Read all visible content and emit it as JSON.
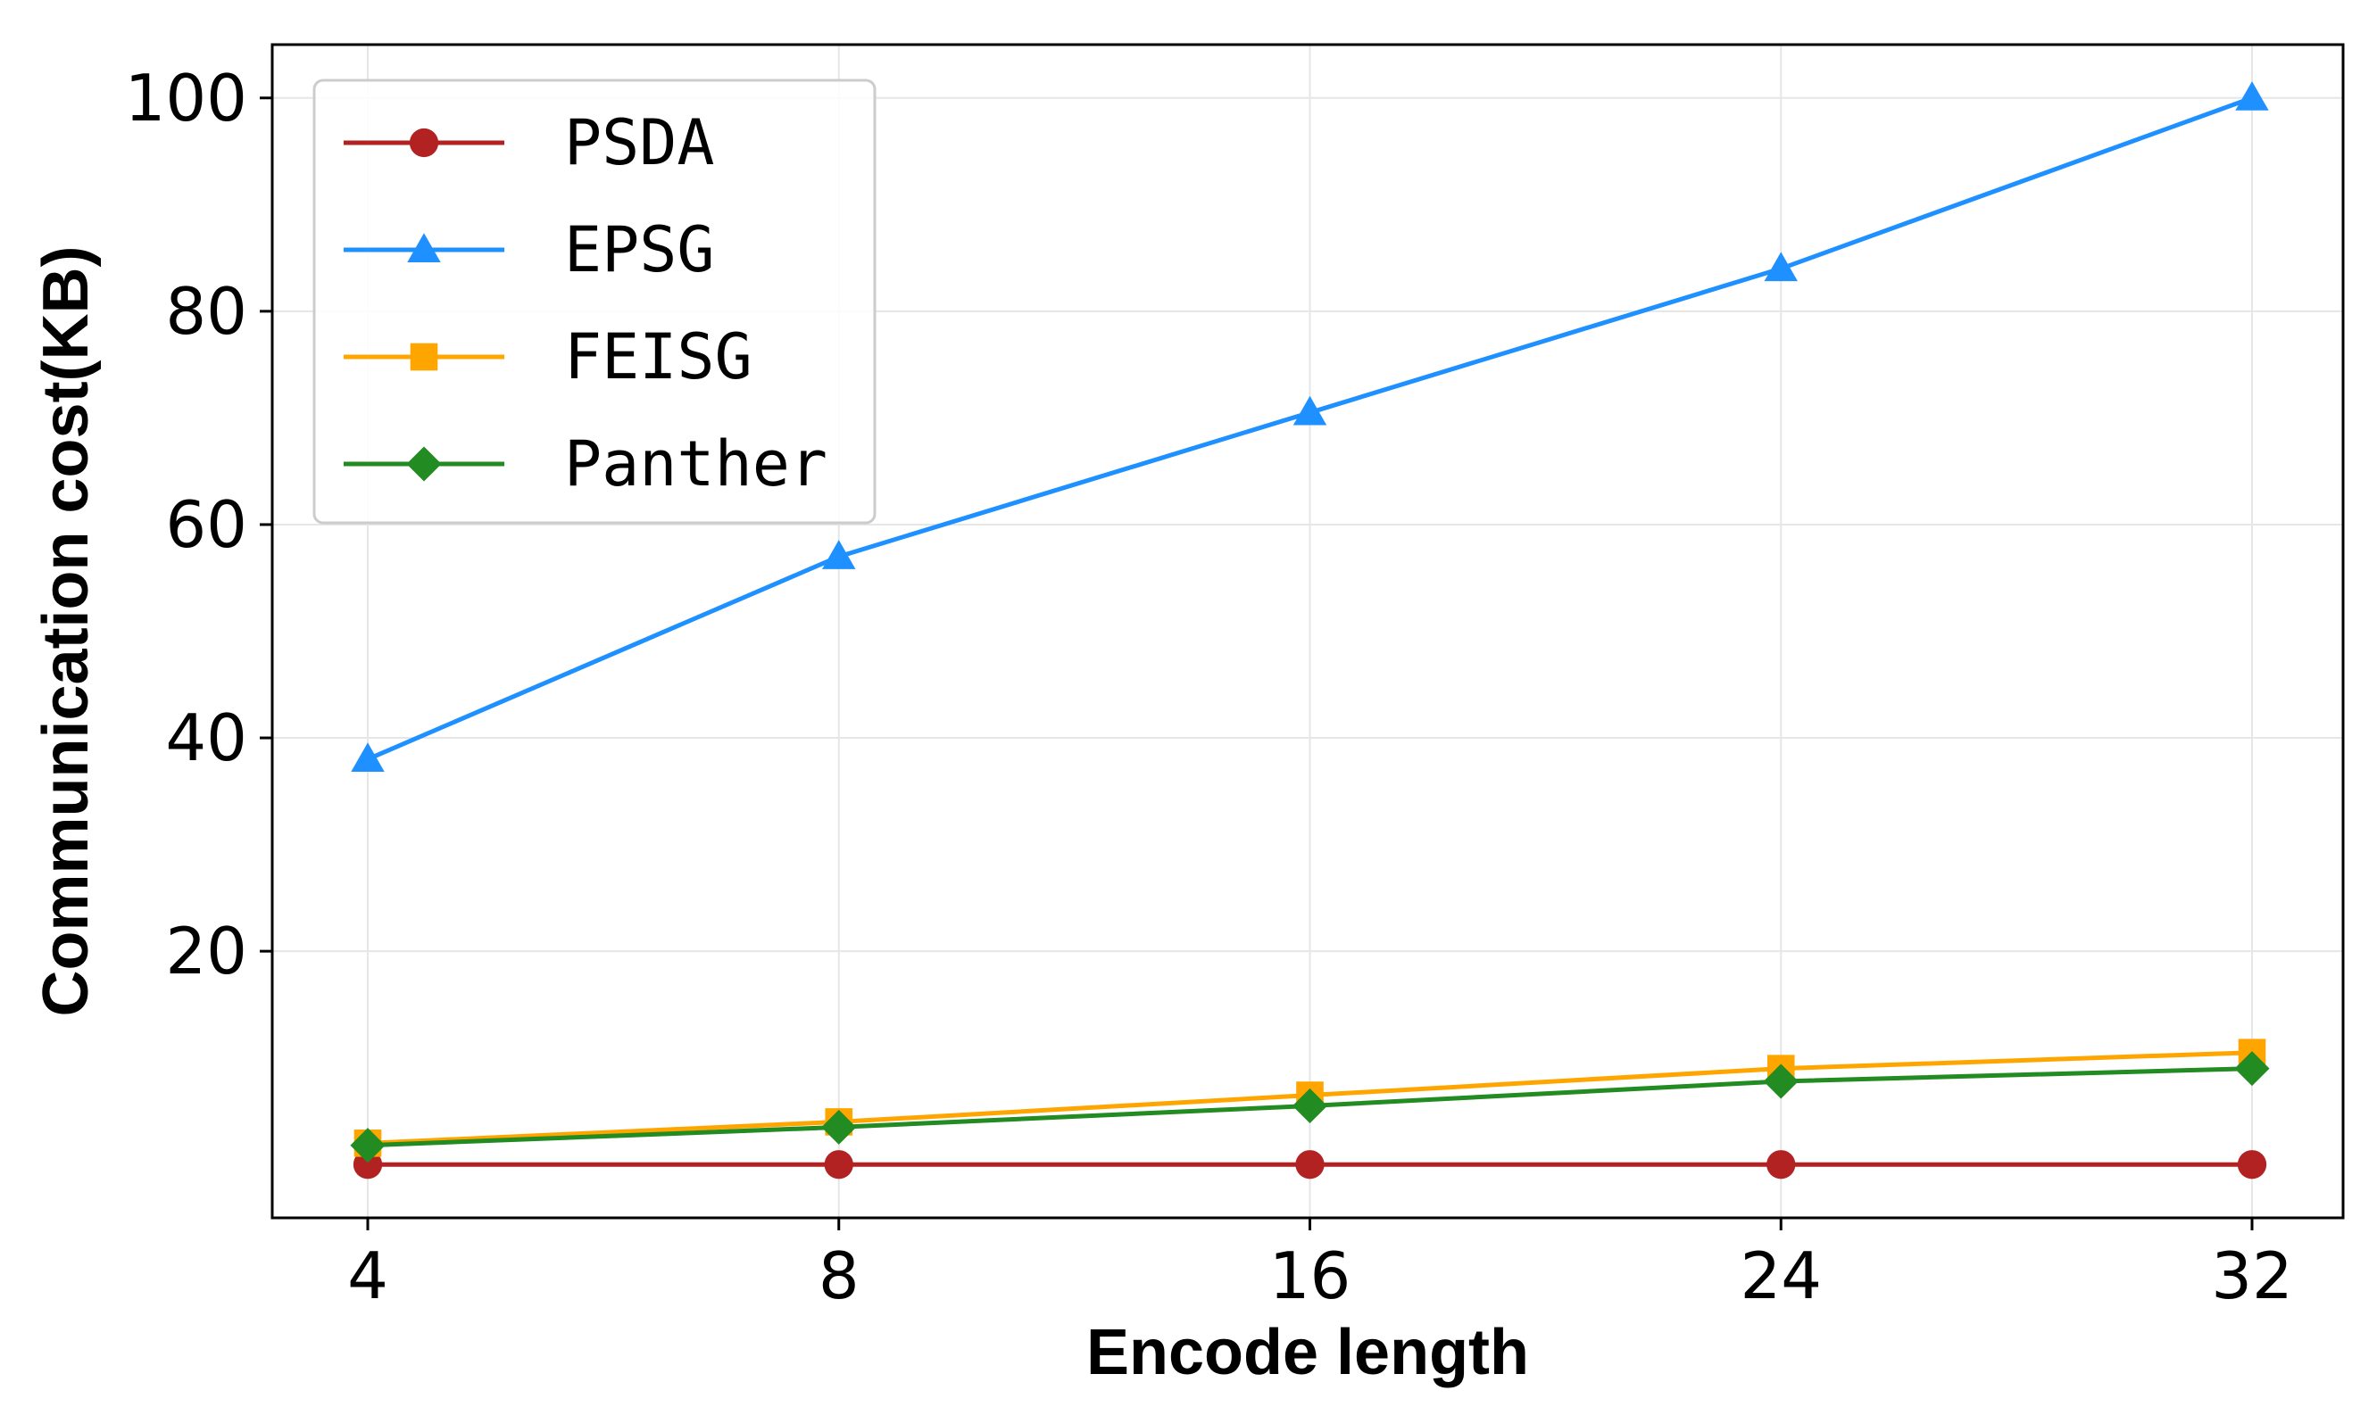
{
  "chart_data": {
    "type": "line",
    "xlabel": "Encode length",
    "ylabel": "Communication cost(KB)",
    "categories": [
      "4",
      "8",
      "16",
      "24",
      "32"
    ],
    "yticks": [
      20,
      40,
      60,
      80,
      100
    ],
    "ylim": [
      -5,
      105
    ],
    "grid": true,
    "legend_position": "top-left",
    "series": [
      {
        "name": "PSDA",
        "values": [
          0,
          0,
          0,
          0,
          0
        ],
        "color": "#b22222",
        "marker": "circle"
      },
      {
        "name": "EPSG",
        "values": [
          38,
          57,
          70.5,
          84,
          100
        ],
        "color": "#1e90ff",
        "marker": "triangle"
      },
      {
        "name": "FEISG",
        "values": [
          2,
          4,
          6.5,
          9,
          10.5
        ],
        "color": "#ffa500",
        "marker": "square"
      },
      {
        "name": "Panther",
        "values": [
          1.8,
          3.5,
          5.5,
          7.8,
          9
        ],
        "color": "#228b22",
        "marker": "diamond"
      }
    ]
  }
}
